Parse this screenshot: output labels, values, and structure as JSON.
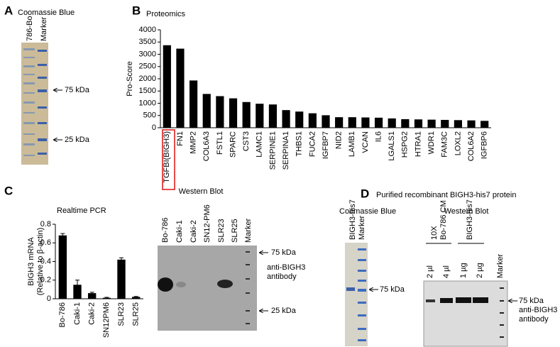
{
  "labels": {
    "a": "A",
    "b": "B",
    "c": "C",
    "d": "D"
  },
  "panel_a": {
    "title": "Coomassie Blue",
    "lanes": [
      "786-Bo",
      "Marker"
    ],
    "markers": [
      "75 kDa",
      "25 kDa"
    ]
  },
  "panel_c_blot": {
    "title": "Western Blot",
    "lanes": [
      "Bo-786",
      "Caki-1",
      "Caki-2",
      "SN12-PM6",
      "SLR23",
      "SLR25",
      "Marker"
    ],
    "markers": [
      "75 kDa",
      "25 kDa"
    ],
    "antibody": [
      "anti-BIGH3",
      "antibody"
    ]
  },
  "panel_d": {
    "title": "Purified recombinant BIGH3-his7 protein",
    "gel": {
      "title": "Coomassie Blue",
      "lanes": [
        "BIGH3-his7",
        "Marker"
      ],
      "marker": "75 kDa"
    },
    "blot": {
      "title": "Western Blot",
      "groups": [
        [
          "10X",
          "Bo-786 CM"
        ],
        "BIGH3-his7"
      ],
      "lanes": [
        "2 µl",
        "4 µl",
        "1 µg",
        "2 µg"
      ],
      "marker_lane": "Marker",
      "marker": "75 kDa",
      "antibody": [
        "anti-BIGH3",
        "antibody"
      ]
    }
  },
  "chart_data": [
    {
      "type": "bar",
      "title": "Proteomics",
      "ylabel": [
        "Pro-Score"
      ],
      "color": "#000000",
      "categories": [
        "TGFBI(BIGH3)",
        "FN1",
        "MMP2",
        "COL6A3",
        "FSTL1",
        "SPARC",
        "CST3",
        "LAMC1",
        "SERPINE1",
        "SERPINA1",
        "THBS1",
        "FUCA2",
        "IGFBP7",
        "NID2",
        "LAMB1",
        "VCAN",
        "IL6",
        "LGALS1",
        "HSPG2",
        "HTRA1",
        "WDR1",
        "FAM3C",
        "LOXL2",
        "COL6A2",
        "IGFBP6"
      ],
      "values": [
        3370,
        3230,
        1930,
        1380,
        1290,
        1200,
        1050,
        980,
        950,
        720,
        660,
        590,
        510,
        430,
        430,
        420,
        410,
        380,
        350,
        340,
        330,
        320,
        310,
        300,
        280
      ],
      "ylim": [
        0,
        4000
      ],
      "yticks": [
        0,
        500,
        1000,
        1500,
        2000,
        2500,
        3000,
        3500,
        4000
      ]
    },
    {
      "type": "bar",
      "title": "Realtime PCR",
      "ylabel": [
        "BIGH3 mRNA",
        "(Relative to β-actin)"
      ],
      "color": "#000000",
      "categories": [
        "Bo-786",
        "Caki-1",
        "Caki-2",
        "SN12PM6",
        "SLR23",
        "SLR25"
      ],
      "values": [
        0.68,
        0.15,
        0.06,
        0.01,
        0.42,
        0.02
      ],
      "errors": [
        0.02,
        0.05,
        0.01,
        0.005,
        0.02,
        0.005
      ],
      "ylim": [
        0,
        0.8
      ],
      "yticks": [
        0,
        0.2,
        0.4,
        0.6,
        0.8
      ]
    }
  ]
}
